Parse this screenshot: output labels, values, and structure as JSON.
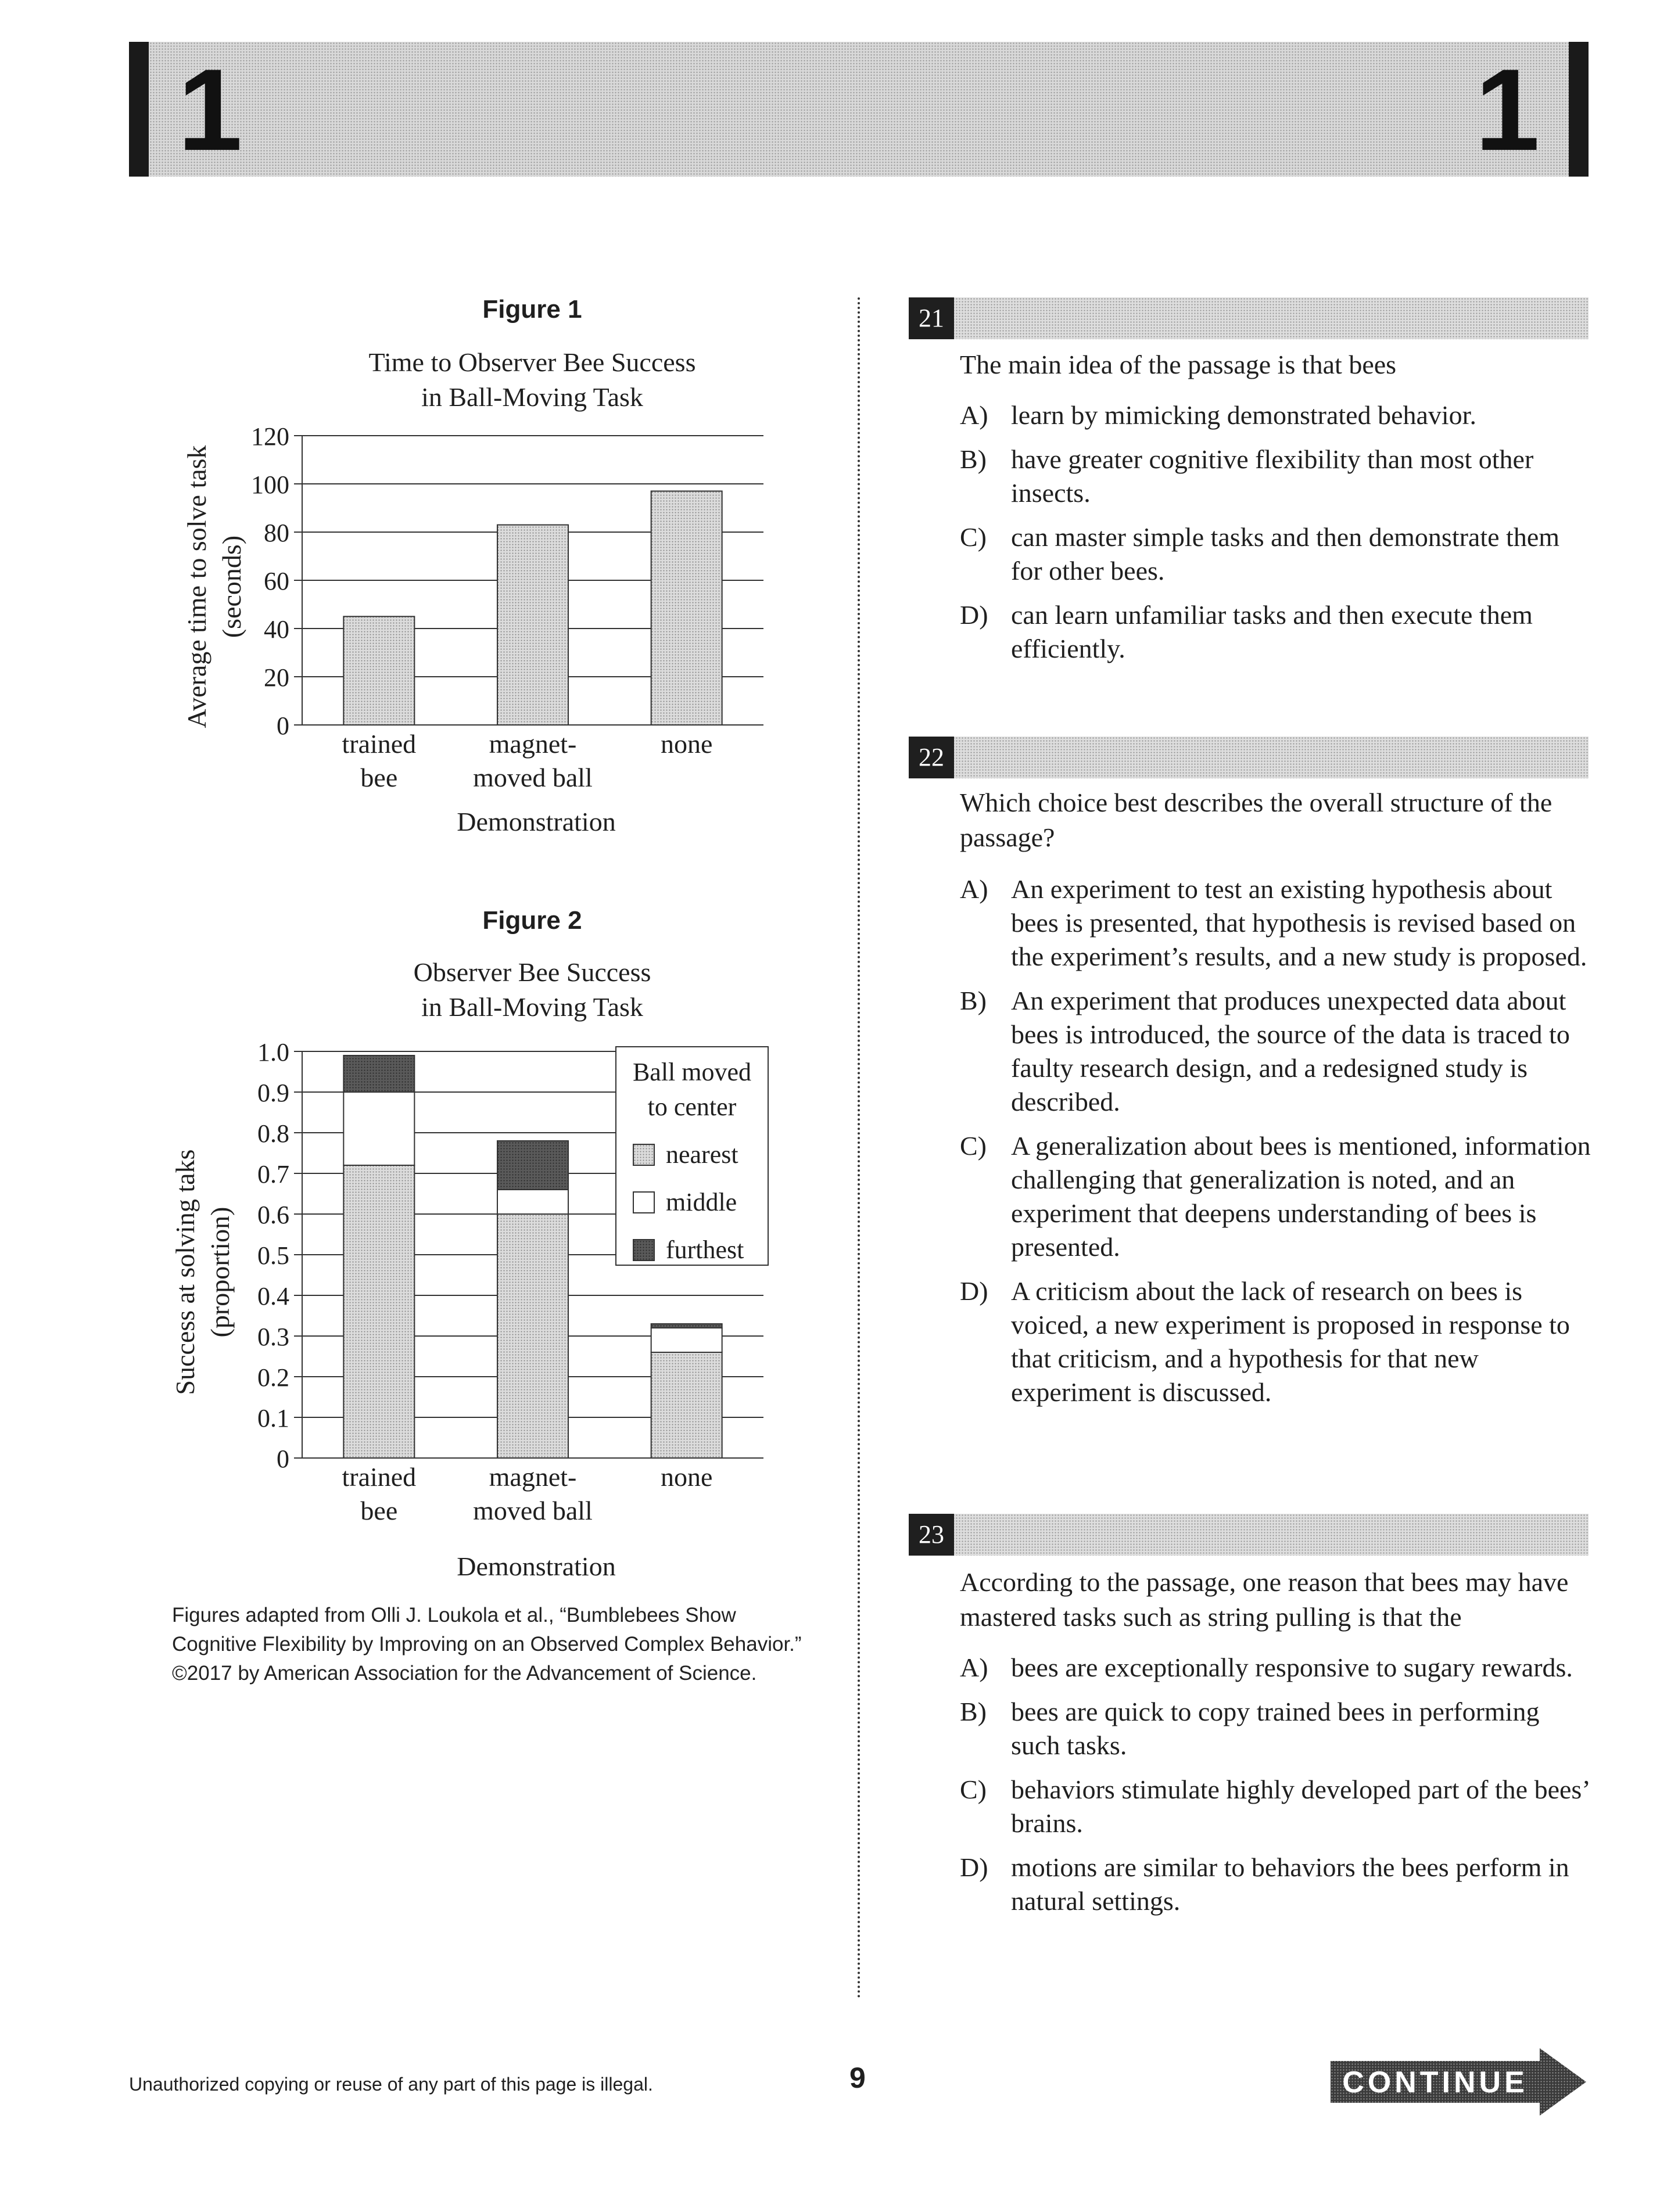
{
  "header": {
    "section_left": "1",
    "section_right": "1"
  },
  "figures": {
    "fig1_label": "Figure 1",
    "fig2_label": "Figure 2",
    "source": "Figures adapted from Olli J. Loukola et al., “Bumblebees Show Cognitive Flexibility by Improving on an Observed Complex Behavior.” ©2017 by American Association for the Advancement of Science."
  },
  "chart_data": [
    {
      "type": "bar",
      "title_line1": "Time to Observer Bee Success",
      "title_line2": "in Ball-Moving Task",
      "ylabel_line1": "Average time to solve task",
      "ylabel_line2": "(seconds)",
      "xlabel": "Demonstration",
      "categories": [
        [
          "trained",
          "bee"
        ],
        [
          "magnet-",
          "moved ball"
        ],
        [
          "none"
        ]
      ],
      "values": [
        45,
        83,
        97
      ],
      "ylim": [
        0,
        120
      ],
      "yticks": [
        "0",
        "20",
        "40",
        "60",
        "80",
        "100",
        "120"
      ],
      "grid": true
    },
    {
      "type": "stacked-bar",
      "title_line1": "Observer Bee Success",
      "title_line2": "in Ball-Moving Task",
      "ylabel_line1": "Success at solving taks",
      "ylabel_line2": "(proportion)",
      "xlabel": "Demonstration",
      "categories": [
        [
          "trained",
          "bee"
        ],
        [
          "magnet-",
          "moved ball"
        ],
        [
          "none"
        ]
      ],
      "ylim": [
        0,
        1.0
      ],
      "yticks": [
        "0",
        "0.1",
        "0.2",
        "0.3",
        "0.4",
        "0.5",
        "0.6",
        "0.7",
        "0.8",
        "0.9",
        "1.0"
      ],
      "legend_title_line1": "Ball moved",
      "legend_title_line2": "to center",
      "legend_position": "top-right",
      "series": [
        {
          "name": "nearest",
          "values": [
            0.72,
            0.6,
            0.26
          ]
        },
        {
          "name": "middle",
          "values": [
            0.18,
            0.06,
            0.06
          ]
        },
        {
          "name": "furthest",
          "values": [
            0.09,
            0.12,
            0.01
          ]
        }
      ],
      "grid": true
    }
  ],
  "questions": [
    {
      "number": "21",
      "stem": "The main idea of the passage is that bees",
      "choices": [
        {
          "letter": "A)",
          "text": "learn by mimicking demonstrated behavior."
        },
        {
          "letter": "B)",
          "text": "have greater cognitive flexibility than most other insects."
        },
        {
          "letter": "C)",
          "text": "can master simple tasks and then demonstrate them for other bees."
        },
        {
          "letter": "D)",
          "text": "can learn unfamiliar tasks and then execute them efficiently."
        }
      ]
    },
    {
      "number": "22",
      "stem": "Which choice best describes the overall structure of the passage?",
      "choices": [
        {
          "letter": "A)",
          "text": "An experiment to test an existing hypothesis about bees is presented, that hypothesis is revised based on the experiment’s results, and a new study is proposed."
        },
        {
          "letter": "B)",
          "text": "An experiment that produces unexpected data about bees is introduced, the source of the data is traced to faulty research design, and a redesigned study is described."
        },
        {
          "letter": "C)",
          "text": "A generalization about bees is mentioned, information challenging that generalization is noted, and an experiment that deepens understanding of bees is presented."
        },
        {
          "letter": "D)",
          "text": "A criticism about the lack of research on bees is voiced, a new experiment is proposed in response to that criticism, and a hypothesis for that new experiment is discussed."
        }
      ]
    },
    {
      "number": "23",
      "stem": "According to the passage, one reason that bees may have mastered tasks such as string pulling is that the",
      "choices": [
        {
          "letter": "A)",
          "text": "bees are exceptionally responsive to sugary rewards."
        },
        {
          "letter": "B)",
          "text": "bees are quick to copy trained bees in performing such tasks."
        },
        {
          "letter": "C)",
          "text": "behaviors stimulate highly developed part of the bees’ brains."
        },
        {
          "letter": "D)",
          "text": "motions are similar to behaviors the bees perform in natural settings."
        }
      ]
    }
  ],
  "footer": {
    "notice": "Unauthorized copying or reuse of any part of this page is illegal.",
    "page_number": "9",
    "continue_label": "CONTINUE"
  }
}
